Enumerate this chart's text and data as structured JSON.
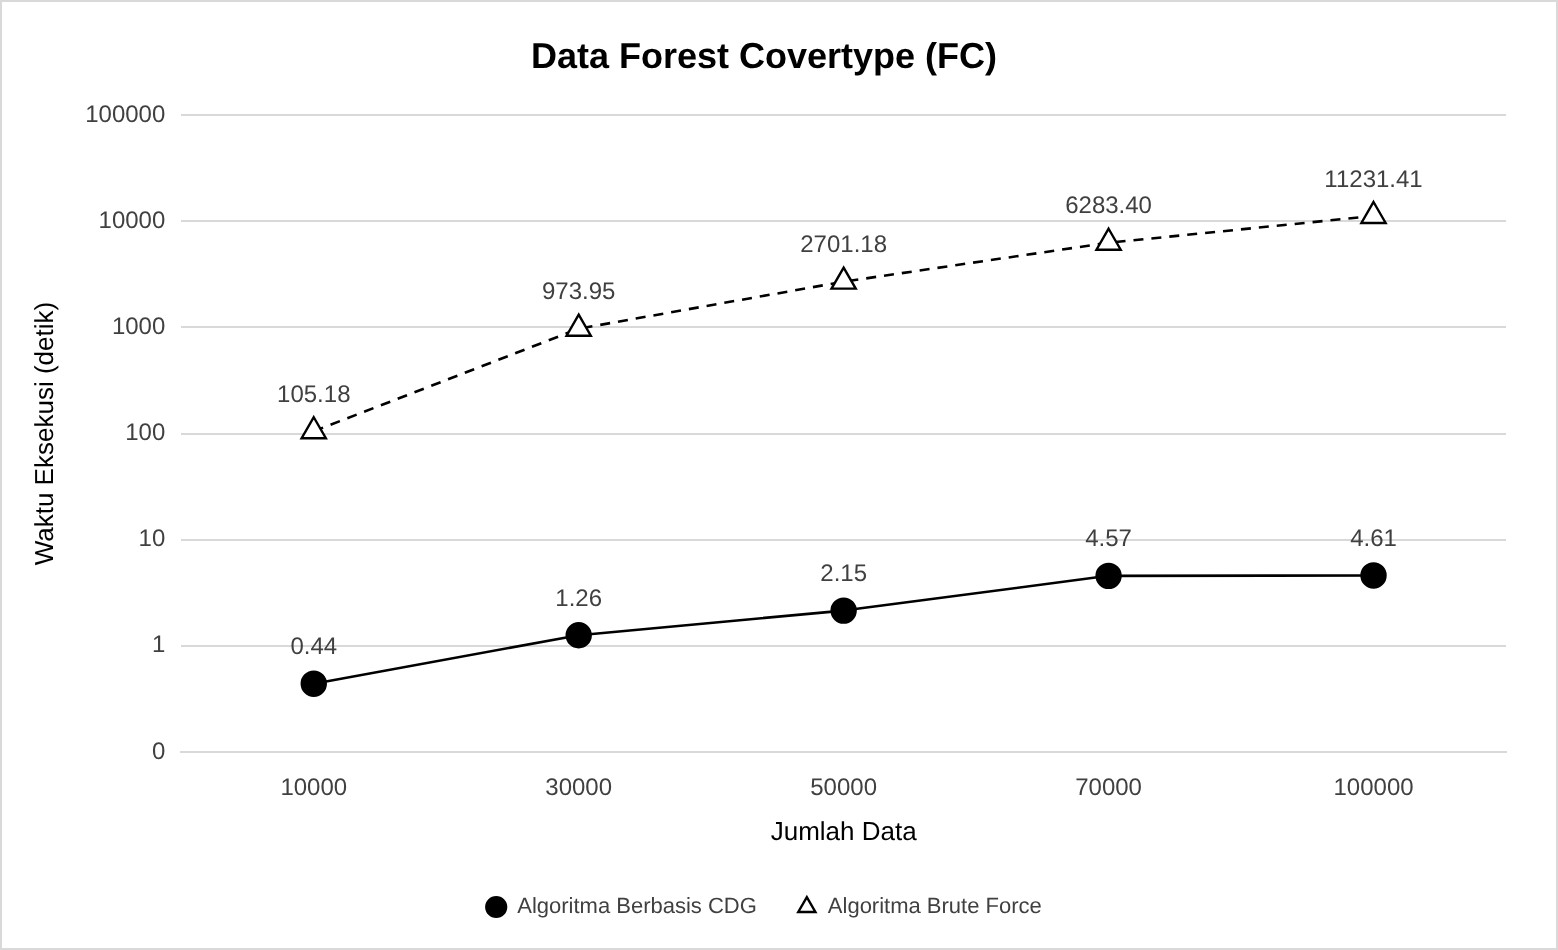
{
  "chart_data": {
    "type": "line",
    "title": "Data Forest Covertype (FC)",
    "xlabel": "Jumlah Data",
    "ylabel": "Waktu Eksekusi (detik)",
    "categories": [
      "10000",
      "30000",
      "50000",
      "70000",
      "100000"
    ],
    "series": [
      {
        "name": "Algoritma Berbasis CDG",
        "color": "#000000",
        "marker": "circle",
        "line_style": "solid",
        "values": [
          0.44,
          1.26,
          2.15,
          4.57,
          4.61
        ],
        "value_labels": [
          "0.44",
          "1.26",
          "2.15",
          "4.57",
          "4.61"
        ]
      },
      {
        "name": "Algoritma Brute Force",
        "color": "#000000",
        "marker": "triangle",
        "line_style": "dashed",
        "values": [
          105.18,
          973.95,
          2701.18,
          6283.4,
          11231.41
        ],
        "value_labels": [
          "105.18",
          "973.95",
          "2701.18",
          "6283.40",
          "11231.41"
        ]
      }
    ],
    "log": "y",
    "ylim": [
      0.1,
      100000
    ],
    "yticks": [
      {
        "value": 0.1,
        "label": "0"
      },
      1,
      10,
      100,
      1000,
      10000,
      100000
    ],
    "grid": "y",
    "legend": "bottom"
  }
}
